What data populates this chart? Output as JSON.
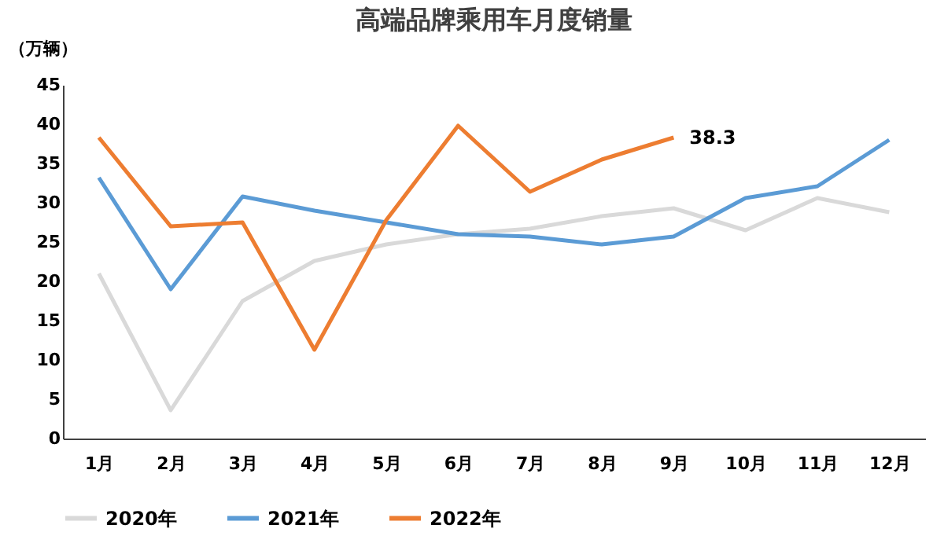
{
  "chart_data": {
    "type": "line",
    "title": "高端品牌乘用车月度销量",
    "ylabel": "（万辆）",
    "categories": [
      "1月",
      "2月",
      "3月",
      "4月",
      "5月",
      "6月",
      "7月",
      "8月",
      "9月",
      "10月",
      "11月",
      "12月"
    ],
    "series": [
      {
        "name": "2020年",
        "color": "#d9d9d9",
        "values": [
          21,
          3.6,
          17.5,
          22.6,
          24.7,
          26,
          26.7,
          28.3,
          29.3,
          26.5,
          30.6,
          28.8
        ]
      },
      {
        "name": "2021年",
        "color": "#5b9bd5",
        "values": [
          33.2,
          19,
          30.8,
          29,
          27.5,
          26,
          25.7,
          24.7,
          25.7,
          30.6,
          32.1,
          38
        ]
      },
      {
        "name": "2022年",
        "color": "#ed7d31",
        "values": [
          38.3,
          27,
          27.5,
          11.3,
          27.8,
          39.8,
          31.4,
          35.5,
          38.3,
          null,
          null,
          null
        ],
        "value_labels": [
          null,
          null,
          null,
          null,
          null,
          null,
          null,
          null,
          "38.3",
          null,
          null,
          null
        ]
      }
    ],
    "ylim": [
      0,
      45
    ],
    "yticks": [
      0,
      5,
      10,
      15,
      20,
      25,
      30,
      35,
      40,
      45
    ],
    "grid": false,
    "legend": "bottom",
    "marker": "none",
    "line_style": "solid"
  }
}
